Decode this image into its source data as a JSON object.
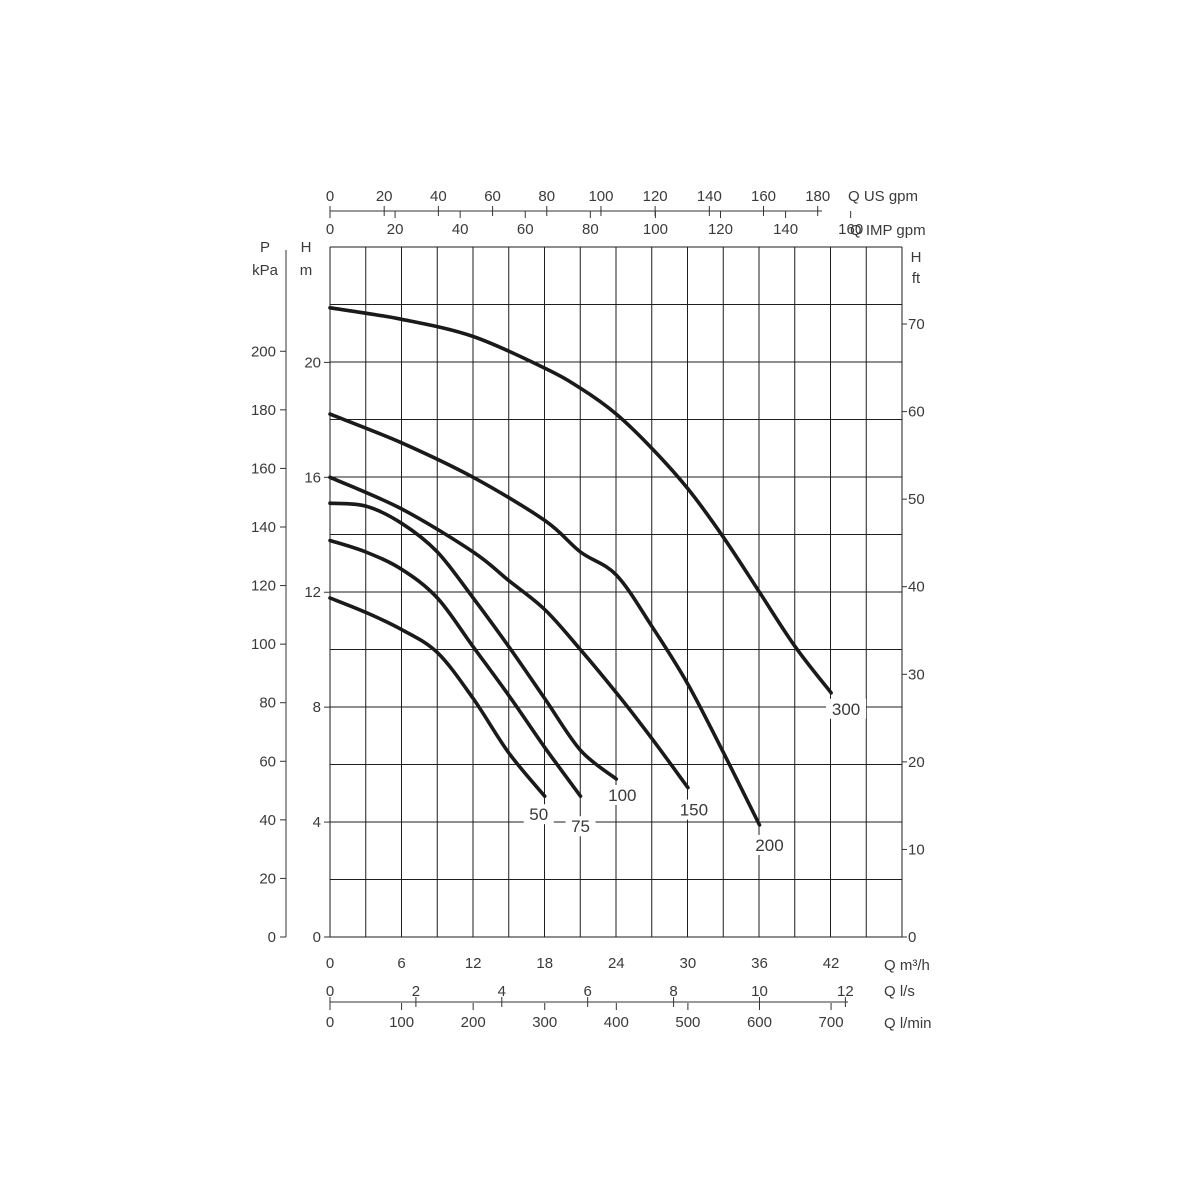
{
  "chart_data": {
    "type": "line",
    "title": "",
    "x_axes": [
      {
        "id": "us_gpm",
        "label": "Q US gpm",
        "ticks": [
          0,
          20,
          40,
          60,
          80,
          100,
          120,
          140,
          160,
          180
        ]
      },
      {
        "id": "imp_gpm",
        "label": "Q IMP gpm",
        "ticks": [
          0,
          20,
          40,
          60,
          80,
          100,
          120,
          140,
          160
        ]
      },
      {
        "id": "m3h",
        "label": "Q m³/h",
        "ticks": [
          0,
          6,
          12,
          18,
          24,
          30,
          36,
          42
        ]
      },
      {
        "id": "ls",
        "label": "Q l/s",
        "ticks": [
          0,
          2,
          4,
          6,
          8,
          10,
          12
        ]
      },
      {
        "id": "lmin",
        "label": "Q l/min",
        "ticks": [
          0,
          100,
          200,
          300,
          400,
          500,
          600,
          700
        ]
      }
    ],
    "y_axes": [
      {
        "id": "kpa",
        "label_top": "P",
        "label_unit": "kPa",
        "ticks": [
          0,
          20,
          40,
          60,
          80,
          100,
          120,
          140,
          160,
          180,
          200
        ]
      },
      {
        "id": "m",
        "label_top": "H",
        "label_unit": "m",
        "ticks": [
          0,
          4,
          8,
          12,
          16,
          20
        ]
      },
      {
        "id": "ft",
        "label_top": "H",
        "label_unit": "ft",
        "ticks": [
          0,
          10,
          20,
          30,
          40,
          50,
          60,
          70
        ]
      }
    ],
    "xlim_m3h": [
      0,
      48
    ],
    "ylim_m": [
      0,
      22
    ],
    "grid": true,
    "series": [
      {
        "name": "50",
        "x": [
          0,
          3,
          6,
          9,
          12,
          15,
          18
        ],
        "y": [
          11.8,
          11.3,
          10.7,
          9.9,
          8.3,
          6.4,
          4.9
        ]
      },
      {
        "name": "75",
        "x": [
          0,
          3,
          6,
          9,
          12,
          15,
          18,
          21
        ],
        "y": [
          13.8,
          13.4,
          12.8,
          11.8,
          10.1,
          8.4,
          6.6,
          4.9
        ]
      },
      {
        "name": "100",
        "x": [
          0,
          3,
          6,
          9,
          12,
          15,
          18,
          21,
          24
        ],
        "y": [
          15.1,
          15.0,
          14.4,
          13.4,
          11.8,
          10.1,
          8.3,
          6.5,
          5.5
        ]
      },
      {
        "name": "150",
        "x": [
          0,
          6,
          12,
          15,
          18,
          21,
          24,
          27,
          30
        ],
        "y": [
          16.0,
          14.9,
          13.4,
          12.4,
          11.4,
          10.0,
          8.5,
          6.9,
          5.2
        ]
      },
      {
        "name": "200",
        "x": [
          0,
          6,
          12,
          18,
          21,
          24,
          27,
          30,
          33,
          36
        ],
        "y": [
          18.2,
          17.2,
          16.0,
          14.5,
          13.4,
          12.6,
          10.8,
          8.8,
          6.4,
          3.9
        ]
      },
      {
        "name": "300",
        "x": [
          0,
          6,
          12,
          18,
          21,
          24,
          27,
          30,
          33,
          36,
          39,
          42
        ],
        "y": [
          21.9,
          21.5,
          20.9,
          19.8,
          19.1,
          18.2,
          17.0,
          15.6,
          13.9,
          12.0,
          10.1,
          8.5
        ]
      }
    ]
  }
}
